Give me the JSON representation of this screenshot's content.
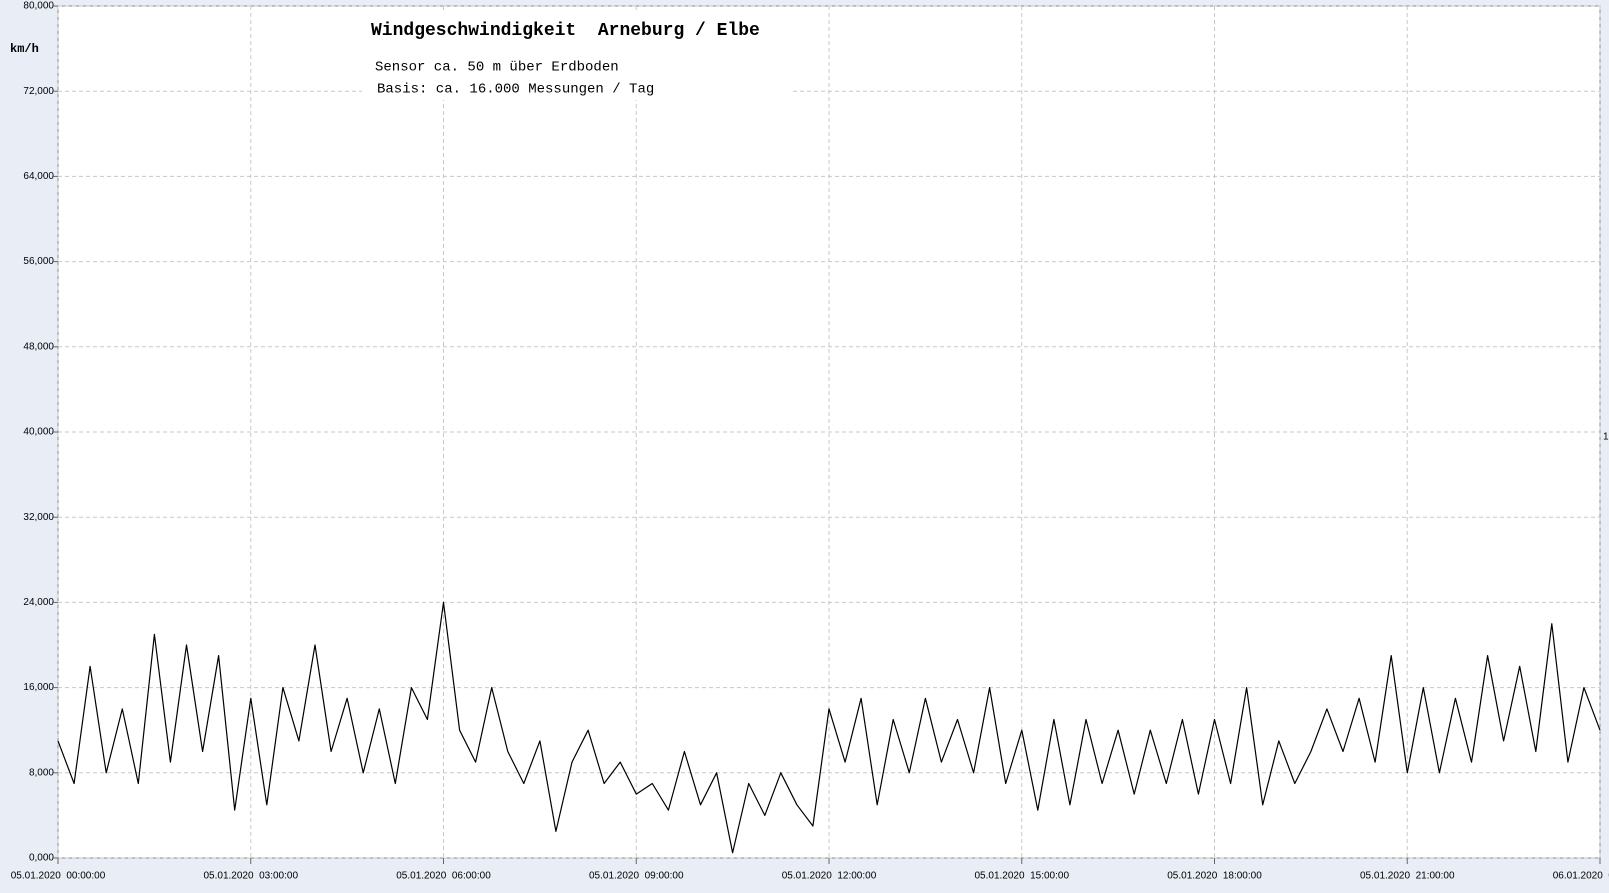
{
  "chart_data": {
    "type": "line",
    "title": "Windgeschwindigkeit  Arneburg / Elbe",
    "subtitle": "Sensor ca. 50 m über Erdboden",
    "subtitle2": "Basis: ca. 16.000 Messungen / Tag",
    "y_label": "km/h",
    "annotation": "1",
    "x": [
      "05.01.2020 00:00:00",
      "05.01.2020 00:15:00",
      "05.01.2020 00:30:00",
      "05.01.2020 00:45:00",
      "05.01.2020 01:00:00",
      "05.01.2020 01:15:00",
      "05.01.2020 01:30:00",
      "05.01.2020 01:45:00",
      "05.01.2020 02:00:00",
      "05.01.2020 02:15:00",
      "05.01.2020 02:30:00",
      "05.01.2020 02:45:00",
      "05.01.2020 03:00:00",
      "05.01.2020 03:15:00",
      "05.01.2020 03:30:00",
      "05.01.2020 03:45:00",
      "05.01.2020 04:00:00",
      "05.01.2020 04:15:00",
      "05.01.2020 04:30:00",
      "05.01.2020 04:45:00",
      "05.01.2020 05:00:00",
      "05.01.2020 05:15:00",
      "05.01.2020 05:30:00",
      "05.01.2020 05:45:00",
      "05.01.2020 06:00:00",
      "05.01.2020 06:15:00",
      "05.01.2020 06:30:00",
      "05.01.2020 06:45:00",
      "05.01.2020 07:00:00",
      "05.01.2020 07:15:00",
      "05.01.2020 07:30:00",
      "05.01.2020 07:45:00",
      "05.01.2020 08:00:00",
      "05.01.2020 08:15:00",
      "05.01.2020 08:30:00",
      "05.01.2020 08:45:00",
      "05.01.2020 09:00:00",
      "05.01.2020 09:15:00",
      "05.01.2020 09:30:00",
      "05.01.2020 09:45:00",
      "05.01.2020 10:00:00",
      "05.01.2020 10:15:00",
      "05.01.2020 10:30:00",
      "05.01.2020 10:45:00",
      "05.01.2020 11:00:00",
      "05.01.2020 11:15:00",
      "05.01.2020 11:30:00",
      "05.01.2020 11:45:00",
      "05.01.2020 12:00:00",
      "05.01.2020 12:15:00",
      "05.01.2020 12:30:00",
      "05.01.2020 12:45:00",
      "05.01.2020 13:00:00",
      "05.01.2020 13:15:00",
      "05.01.2020 13:30:00",
      "05.01.2020 13:45:00",
      "05.01.2020 14:00:00",
      "05.01.2020 14:15:00",
      "05.01.2020 14:30:00",
      "05.01.2020 14:45:00",
      "05.01.2020 15:00:00",
      "05.01.2020 15:15:00",
      "05.01.2020 15:30:00",
      "05.01.2020 15:45:00",
      "05.01.2020 16:00:00",
      "05.01.2020 16:15:00",
      "05.01.2020 16:30:00",
      "05.01.2020 16:45:00",
      "05.01.2020 17:00:00",
      "05.01.2020 17:15:00",
      "05.01.2020 17:30:00",
      "05.01.2020 17:45:00",
      "05.01.2020 18:00:00",
      "05.01.2020 18:15:00",
      "05.01.2020 18:30:00",
      "05.01.2020 18:45:00",
      "05.01.2020 19:00:00",
      "05.01.2020 19:15:00",
      "05.01.2020 19:30:00",
      "05.01.2020 19:45:00",
      "05.01.2020 20:00:00",
      "05.01.2020 20:15:00",
      "05.01.2020 20:30:00",
      "05.01.2020 20:45:00",
      "05.01.2020 21:00:00",
      "05.01.2020 21:15:00",
      "05.01.2020 21:30:00",
      "05.01.2020 21:45:00",
      "05.01.2020 22:00:00",
      "05.01.2020 22:15:00",
      "05.01.2020 22:30:00",
      "05.01.2020 22:45:00",
      "05.01.2020 23:00:00",
      "05.01.2020 23:15:00",
      "05.01.2020 23:30:00",
      "05.01.2020 23:45:00",
      "06.01.2020 00:00:00"
    ],
    "series": [
      {
        "name": "Windgeschwindigkeit",
        "color": "#000000",
        "values": [
          11,
          7,
          18,
          8,
          14,
          7,
          21,
          9,
          20,
          10,
          19,
          4.5,
          15,
          5,
          16,
          11,
          20,
          10,
          15,
          8,
          14,
          7,
          16,
          13,
          24,
          12,
          9,
          16,
          10,
          7,
          11,
          2.5,
          9,
          12,
          7,
          9,
          6,
          7,
          4.5,
          10,
          5,
          8,
          0.5,
          7,
          4,
          8,
          5,
          3,
          14,
          9,
          15,
          5,
          13,
          8,
          15,
          9,
          13,
          8,
          16,
          7,
          12,
          4.5,
          13,
          5,
          13,
          7,
          12,
          6,
          12,
          7,
          13,
          6,
          13,
          7,
          16,
          5,
          11,
          7,
          10,
          14,
          10,
          15,
          9,
          19,
          8,
          16,
          8,
          15,
          9,
          19,
          11,
          18,
          10,
          22,
          9,
          16,
          12
        ]
      }
    ],
    "xlim": [
      "05.01.2020 00:00:00",
      "06.01.2020 00:00:00"
    ],
    "xticks": [
      "05.01.2020  00:00:00",
      "05.01.2020  03:00:00",
      "05.01.2020  06:00:00",
      "05.01.2020  09:00:00",
      "05.01.2020  12:00:00",
      "05.01.2020  15:00:00",
      "05.01.2020  18:00:00",
      "05.01.2020  21:00:00",
      "06.01.2020  00:00:00"
    ],
    "ylim": [
      0,
      80
    ],
    "yticks": [
      {
        "value": 0,
        "label": "0,000"
      },
      {
        "value": 8,
        "label": "8,000"
      },
      {
        "value": 16,
        "label": "16,000"
      },
      {
        "value": 24,
        "label": "24,000"
      },
      {
        "value": 32,
        "label": "32,000"
      },
      {
        "value": 40,
        "label": "40,000"
      },
      {
        "value": 48,
        "label": "48,000"
      },
      {
        "value": 56,
        "label": "56,000"
      },
      {
        "value": 64,
        "label": "64,000"
      },
      {
        "value": 72,
        "label": "72,000"
      },
      {
        "value": 80,
        "label": "80,000"
      }
    ],
    "grid": true
  }
}
